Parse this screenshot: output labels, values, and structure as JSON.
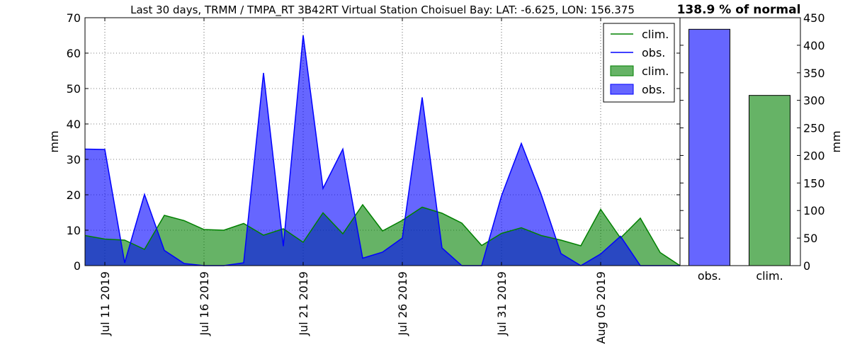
{
  "title": "Last 30 days, TRMM / TMPA_RT 3B42RT Virtual Station Choisuel Bay: LAT: -6.625, LON: 156.375",
  "percent_label": "138.9 % of normal",
  "chart_data": [
    {
      "type": "area",
      "xlabel": "",
      "ylabel": "mm",
      "ylim": [
        0,
        70
      ],
      "yticks": [
        0,
        10,
        20,
        30,
        40,
        50,
        60,
        70
      ],
      "xlim": [
        "2019-07-10",
        "2019-08-09"
      ],
      "xticks": [
        "2019-07-11",
        "2019-07-16",
        "2019-07-21",
        "2019-07-26",
        "2019-07-31",
        "2019-08-05"
      ],
      "xtick_labels": [
        "Jul 11 2019",
        "Jul 16 2019",
        "Jul 21 2019",
        "Jul 26 2019",
        "Jul 31 2019",
        "Aug 05 2019"
      ],
      "grid": true,
      "legend_position": "top-right",
      "legend": [
        {
          "label": "clim.",
          "kind": "line",
          "color": "#008000"
        },
        {
          "label": "obs.",
          "kind": "line",
          "color": "#0000ff"
        },
        {
          "label": "clim.",
          "kind": "patch",
          "color": "#008000"
        },
        {
          "label": "obs.",
          "kind": "patch",
          "color": "#0000ff"
        }
      ],
      "x": [
        "2019-07-10",
        "2019-07-11",
        "2019-07-12",
        "2019-07-13",
        "2019-07-14",
        "2019-07-15",
        "2019-07-16",
        "2019-07-17",
        "2019-07-18",
        "2019-07-19",
        "2019-07-20",
        "2019-07-21",
        "2019-07-22",
        "2019-07-23",
        "2019-07-24",
        "2019-07-25",
        "2019-07-26",
        "2019-07-27",
        "2019-07-28",
        "2019-07-29",
        "2019-07-30",
        "2019-07-31",
        "2019-08-01",
        "2019-08-02",
        "2019-08-03",
        "2019-08-04",
        "2019-08-05",
        "2019-08-06",
        "2019-08-07",
        "2019-08-08",
        "2019-08-09"
      ],
      "series": [
        {
          "name": "clim.",
          "color": "#008000",
          "values": [
            8.5,
            7.5,
            7.2,
            4.6,
            14.2,
            12.7,
            10.2,
            10.0,
            11.9,
            8.6,
            10.4,
            6.6,
            14.9,
            9.0,
            17.2,
            9.8,
            12.8,
            16.5,
            14.8,
            12.0,
            5.7,
            9.1,
            10.7,
            8.5,
            7.2,
            5.6,
            15.9,
            7.8,
            13.4,
            3.7,
            0.0
          ]
        },
        {
          "name": "obs.",
          "color": "#0000ff",
          "values": [
            32.9,
            32.8,
            0.8,
            20.1,
            4.3,
            0.6,
            0.0,
            0.0,
            0.8,
            54.4,
            5.5,
            65.0,
            21.8,
            32.9,
            2.1,
            3.8,
            7.8,
            47.5,
            5.0,
            0.0,
            0.0,
            19.7,
            34.5,
            20.1,
            3.4,
            0.0,
            3.3,
            8.3,
            0.0,
            0.0,
            0.0
          ]
        }
      ]
    },
    {
      "type": "bar",
      "categories": [
        "obs.",
        "clim."
      ],
      "values": [
        429,
        309
      ],
      "colors": [
        "#0000ff",
        "#008000"
      ],
      "ylabel": "mm",
      "ylim": [
        0,
        450
      ],
      "yticks": [
        0,
        50,
        100,
        150,
        200,
        250,
        300,
        350,
        400,
        450
      ],
      "grid": false
    }
  ]
}
